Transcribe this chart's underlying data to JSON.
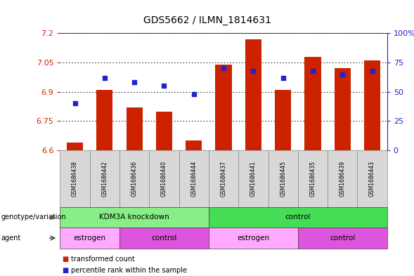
{
  "title": "GDS5662 / ILMN_1814631",
  "samples": [
    "GSM1686438",
    "GSM1686442",
    "GSM1686436",
    "GSM1686440",
    "GSM1686444",
    "GSM1686437",
    "GSM1686441",
    "GSM1686445",
    "GSM1686435",
    "GSM1686439",
    "GSM1686443"
  ],
  "transformed_count": [
    6.64,
    6.91,
    6.82,
    6.8,
    6.65,
    7.04,
    7.17,
    6.91,
    7.08,
    7.02,
    7.06
  ],
  "percentile_rank": [
    40,
    62,
    58,
    55,
    48,
    70,
    68,
    62,
    68,
    65,
    68
  ],
  "ylim_left": [
    6.6,
    7.2
  ],
  "ylim_right": [
    0,
    100
  ],
  "yticks_left": [
    6.6,
    6.75,
    6.9,
    7.05,
    7.2
  ],
  "ytick_labels_left": [
    "6.6",
    "6.75",
    "6.9",
    "7.05",
    "7.2"
  ],
  "yticks_right": [
    0,
    25,
    50,
    75,
    100
  ],
  "ytick_labels_right": [
    "0",
    "25",
    "50",
    "75",
    "100%"
  ],
  "bar_color": "#cc2200",
  "dot_color": "#2222cc",
  "bar_bottom": 6.6,
  "genotype_groups": [
    {
      "label": "KDM3A knockdown",
      "start": 0,
      "end": 5,
      "color": "#88ee88"
    },
    {
      "label": "control",
      "start": 5,
      "end": 11,
      "color": "#44dd55"
    }
  ],
  "agent_groups": [
    {
      "label": "estrogen",
      "start": 0,
      "end": 2,
      "color": "#ffaaff"
    },
    {
      "label": "control",
      "start": 2,
      "end": 5,
      "color": "#dd55dd"
    },
    {
      "label": "estrogen",
      "start": 5,
      "end": 8,
      "color": "#ffaaff"
    },
    {
      "label": "control",
      "start": 8,
      "end": 11,
      "color": "#dd55dd"
    }
  ],
  "genotype_label": "genotype/variation",
  "agent_label": "agent",
  "legend_items": [
    {
      "label": "transformed count",
      "color": "#cc2200"
    },
    {
      "label": "percentile rank within the sample",
      "color": "#2222cc"
    }
  ],
  "left_axis_color": "#cc2200",
  "right_axis_color": "#2222cc",
  "fig_width": 5.89,
  "fig_height": 3.93,
  "dpi": 100
}
